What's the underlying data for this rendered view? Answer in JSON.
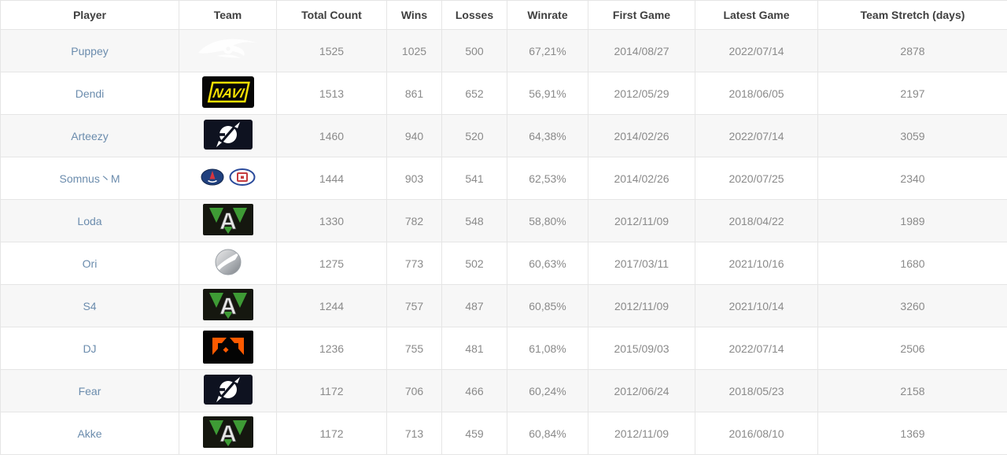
{
  "table": {
    "columns": [
      {
        "label": "Player"
      },
      {
        "label": "Team"
      },
      {
        "label": "Total Count"
      },
      {
        "label": "Wins"
      },
      {
        "label": "Losses"
      },
      {
        "label": "Winrate"
      },
      {
        "label": "First Game"
      },
      {
        "label": "Latest Game"
      },
      {
        "label": "Team Stretch (days)"
      }
    ],
    "rows": [
      {
        "player": "Puppey",
        "team": {
          "name": "Team Secret",
          "icon": "team-secret-logo"
        },
        "total_count": "1525",
        "wins": "1025",
        "losses": "500",
        "winrate": "67,21%",
        "first_game": "2014/08/27",
        "latest_game": "2022/07/14",
        "team_stretch": "2878"
      },
      {
        "player": "Dendi",
        "team": {
          "name": "Natus Vincere",
          "icon": "navi-logo"
        },
        "total_count": "1513",
        "wins": "861",
        "losses": "652",
        "winrate": "56,91%",
        "first_game": "2012/05/29",
        "latest_game": "2018/06/05",
        "team_stretch": "2197"
      },
      {
        "player": "Arteezy",
        "team": {
          "name": "Evil Geniuses",
          "icon": "evil-geniuses-logo"
        },
        "total_count": "1460",
        "wins": "940",
        "losses": "520",
        "winrate": "64,38%",
        "first_game": "2014/02/26",
        "latest_game": "2022/07/14",
        "team_stretch": "3059"
      },
      {
        "player": "Somnus丶M",
        "team": {
          "name": "PSG.LGD",
          "icon": "psg-lgd-logo"
        },
        "total_count": "1444",
        "wins": "903",
        "losses": "541",
        "winrate": "62,53%",
        "first_game": "2014/02/26",
        "latest_game": "2020/07/25",
        "team_stretch": "2340"
      },
      {
        "player": "Loda",
        "team": {
          "name": "Alliance",
          "icon": "alliance-logo"
        },
        "total_count": "1330",
        "wins": "782",
        "losses": "548",
        "winrate": "58,80%",
        "first_game": "2012/11/09",
        "latest_game": "2018/04/22",
        "team_stretch": "1989"
      },
      {
        "player": "Ori",
        "team": {
          "name": "Vici Gaming",
          "icon": "vici-gaming-logo"
        },
        "total_count": "1275",
        "wins": "773",
        "losses": "502",
        "winrate": "60,63%",
        "first_game": "2017/03/11",
        "latest_game": "2021/10/16",
        "team_stretch": "1680"
      },
      {
        "player": "S4",
        "team": {
          "name": "Alliance",
          "icon": "alliance-logo"
        },
        "total_count": "1244",
        "wins": "757",
        "losses": "487",
        "winrate": "60,85%",
        "first_game": "2012/11/09",
        "latest_game": "2021/10/14",
        "team_stretch": "3260"
      },
      {
        "player": "DJ",
        "team": {
          "name": "Fnatic",
          "icon": "fnatic-logo"
        },
        "total_count": "1236",
        "wins": "755",
        "losses": "481",
        "winrate": "61,08%",
        "first_game": "2015/09/03",
        "latest_game": "2022/07/14",
        "team_stretch": "2506"
      },
      {
        "player": "Fear",
        "team": {
          "name": "Evil Geniuses",
          "icon": "evil-geniuses-logo"
        },
        "total_count": "1172",
        "wins": "706",
        "losses": "466",
        "winrate": "60,24%",
        "first_game": "2012/06/24",
        "latest_game": "2018/05/23",
        "team_stretch": "2158"
      },
      {
        "player": "Akke",
        "team": {
          "name": "Alliance",
          "icon": "alliance-logo"
        },
        "total_count": "1172",
        "wins": "713",
        "losses": "459",
        "winrate": "60,84%",
        "first_game": "2012/11/09",
        "latest_game": "2016/08/10",
        "team_stretch": "1369"
      }
    ]
  },
  "colors": {
    "row_alt_background": "#f7f7f7",
    "border": "#e5e5e5",
    "header_text": "#3f3f3f",
    "cell_text": "#8a8a8a",
    "player_link": "#6b8cad",
    "navi_yellow": "#f5e003",
    "fnatic_orange": "#ff5a00",
    "alliance_green": "#3e9b35",
    "eg_background": "#0e1220",
    "psg_blue": "#20407e",
    "lgd_red": "#c53b3f"
  }
}
